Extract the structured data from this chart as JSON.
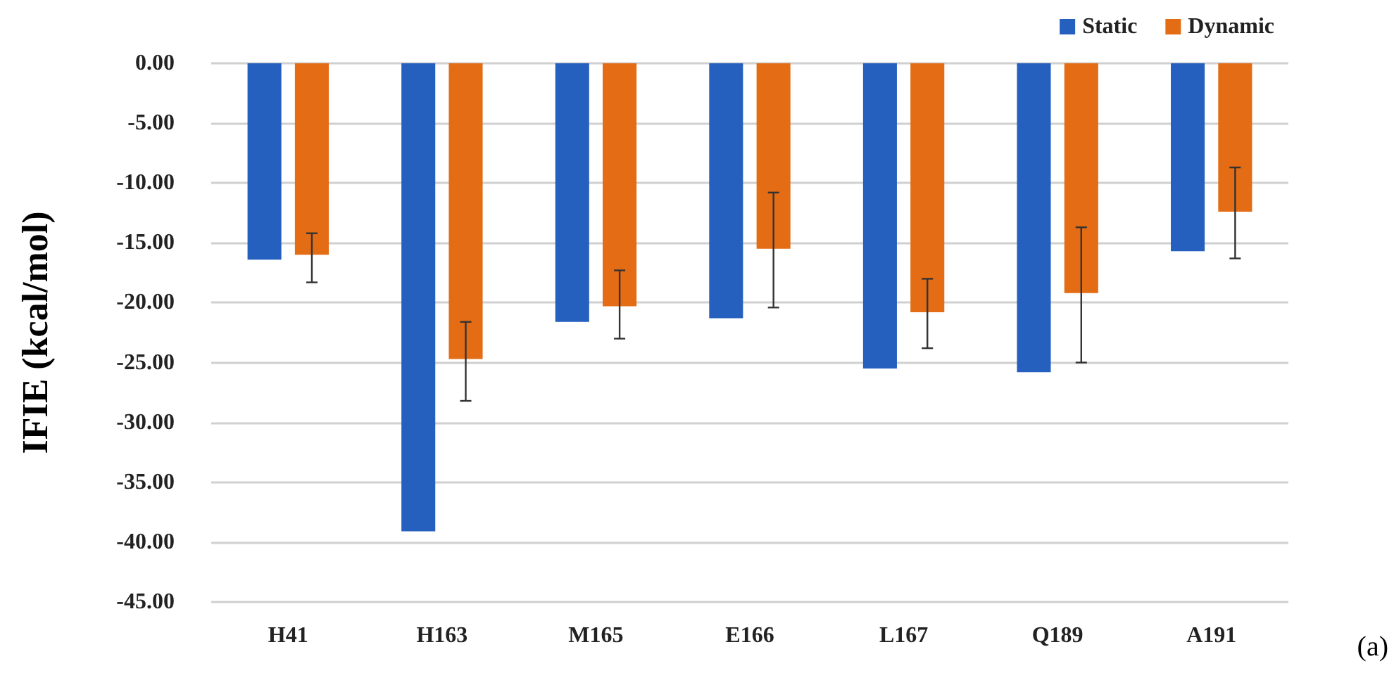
{
  "chart_data": {
    "type": "bar",
    "ylabel": "IFIE (kcal/mol)",
    "categories": [
      "H41",
      "H163",
      "M165",
      "E166",
      "L167",
      "Q189",
      "A191"
    ],
    "series": [
      {
        "name": "Static",
        "color": "#2560be",
        "values": [
          -16.4,
          -39.1,
          -21.6,
          -21.3,
          -25.5,
          -25.8,
          -15.7
        ]
      },
      {
        "name": "Dynamic",
        "color": "#e46c14",
        "values": [
          -16.0,
          -24.7,
          -20.3,
          -15.5,
          -20.8,
          -19.2,
          -12.4
        ],
        "errors": [
          [
            -18.3,
            -14.2
          ],
          [
            -28.2,
            -21.6
          ],
          [
            -23.0,
            -17.3
          ],
          [
            -20.4,
            -10.8
          ],
          [
            -23.8,
            -18.0
          ],
          [
            -25.0,
            -13.7
          ],
          [
            -16.3,
            -8.7
          ]
        ]
      }
    ],
    "ylim": [
      -45,
      0
    ],
    "yticks": [
      {
        "value": -45,
        "label": "-45.00"
      },
      {
        "value": -40,
        "label": "-40.00"
      },
      {
        "value": -35,
        "label": "-35.00"
      },
      {
        "value": -30,
        "label": "-30.00"
      },
      {
        "value": -25,
        "label": "-25.00"
      },
      {
        "value": -20,
        "label": "-20.00"
      },
      {
        "value": -15,
        "label": "-15.00"
      },
      {
        "value": -10,
        "label": "-10.00"
      },
      {
        "value": -5,
        "label": "-5.00"
      },
      {
        "value": 0,
        "label": "0.00"
      }
    ],
    "grid": "y",
    "legend": "top right",
    "annotations": [
      "(a)"
    ]
  }
}
